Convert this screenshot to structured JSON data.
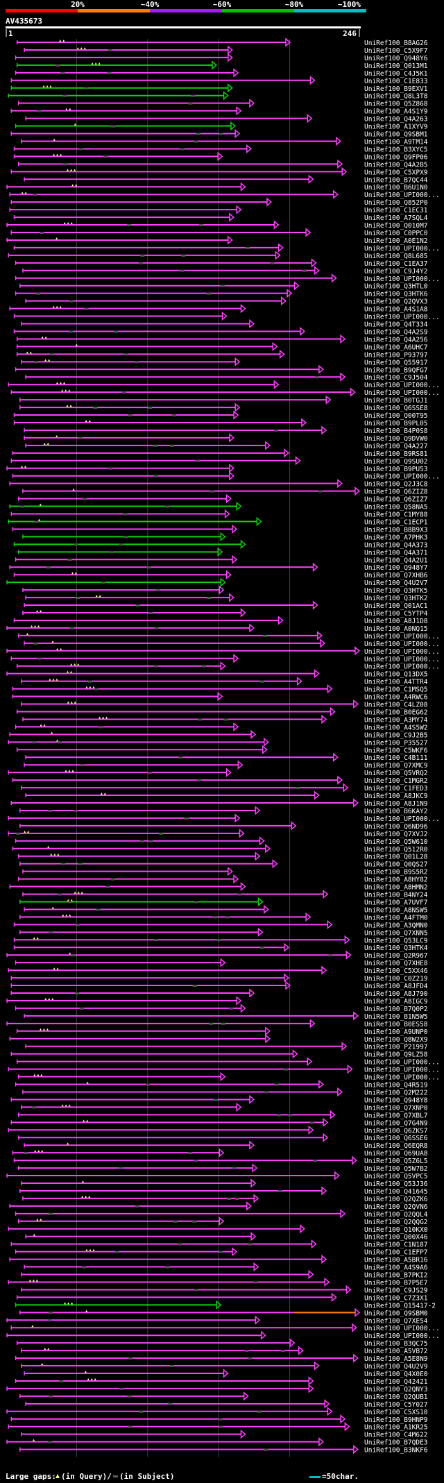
{
  "query": {
    "id": "AV435673",
    "start": 1,
    "end": 246
  },
  "identity_legend": {
    "labels": [
      "20%",
      "~40%",
      "~60%",
      "~80%",
      "~100%"
    ],
    "colors": [
      "#ff0000",
      "#ff8000",
      "#a020f0",
      "#00c000",
      "#00c0c0"
    ]
  },
  "colors": {
    "background": "#000000",
    "hit_magenta": "#ff40ff",
    "hit_green": "#10d010",
    "hit_orange": "#ff8000",
    "gap_yellow": "#ffff80",
    "gridline": "#404040",
    "text": "#ffffff"
  },
  "footer": {
    "large_gaps_label": "Large gaps:",
    "in_query_label": "(in Query)/",
    "in_subject_label": "(in Subject)",
    "scale_label": "=50char."
  },
  "chart_data": {
    "type": "alignment-overview",
    "query_length": 246,
    "hit_names": [
      "UniRef100_B8AG26",
      "UniRef100_C5X9F7",
      "UniRef100_Q948Y6",
      "UniRef100_Q013M1",
      "UniRef100_C4J5K1",
      "UniRef100_C1E833",
      "UniRef100_B9EXV1",
      "UniRef100_Q8L3T8",
      "UniRef100_Q5Z868",
      "UniRef100_A4S1Y9",
      "UniRef100_Q4A263",
      "UniRef100_A1XYV9",
      "UniRef100_Q9SBM1",
      "UniRef100_A9TM14",
      "UniRef100_B3XYC5",
      "UniRef100_Q9FP06",
      "UniRef100_Q4A2B5",
      "UniRef100_C5XPX9",
      "UniRef100_B7QC44",
      "UniRef100_B6U1N0",
      "UniRef100_UPI000...",
      "UniRef100_Q852P0",
      "UniRef100_C1EC31",
      "UniRef100_A7SQL4",
      "UniRef100_Q010M7",
      "UniRef100_C0PPC0",
      "UniRef100_A0E1N2",
      "UniRef100_UPI000...",
      "UniRef100_Q8L685",
      "UniRef100_C1EA37",
      "UniRef100_C9J4Y2",
      "UniRef100_UPI000...",
      "UniRef100_Q3HTL0",
      "UniRef100_Q3HTK6",
      "UniRef100_Q2QVX3",
      "UniRef100_A4S1A8",
      "UniRef100_UPI000...",
      "UniRef100_Q4T334",
      "UniRef100_Q4A2S9",
      "UniRef100_Q4A256",
      "UniRef100_A6UHC7",
      "UniRef100_P93797",
      "UniRef100_Q55917",
      "UniRef100_B9QFG7",
      "UniRef100_C9J504",
      "UniRef100_UPI000...",
      "UniRef100_UPI000...",
      "UniRef100_B0TGJ1",
      "UniRef100_Q6SSE8",
      "UniRef100_Q00T95",
      "UniRef100_B9PL05",
      "UniRef100_B4P0S8",
      "UniRef100_Q9DVW0",
      "UniRef100_Q4A227",
      "UniRef100_B9RS81",
      "UniRef100_Q9SU02",
      "UniRef100_B9PU53",
      "UniRef100_UPI000...",
      "UniRef100_Q2J3C8",
      "UniRef100_Q6ZIZ8",
      "UniRef100_Q6ZIZ7",
      "UniRef100_Q58NA5",
      "UniRef100_C1MY88",
      "UniRef100_C1ECP1",
      "UniRef100_B8B9X3",
      "UniRef100_A7PHK3",
      "UniRef100_Q4A373",
      "UniRef100_Q4A371",
      "UniRef100_Q4A2U1",
      "UniRef100_Q948Y7",
      "UniRef100_Q7XHB6",
      "UniRef100_Q4U2V7",
      "UniRef100_Q3HTK5",
      "UniRef100_Q3HTK2",
      "UniRef100_Q01AC1",
      "UniRef100_C5YTP4",
      "UniRef100_A8J1D8",
      "UniRef100_A0NQ15",
      "UniRef100_UPI000...",
      "UniRef100_UPI000...",
      "UniRef100_UPI000...",
      "UniRef100_UPI000...",
      "UniRef100_UPI000...",
      "UniRef100_Q13DX5",
      "UniRef100_A4TTR4",
      "UniRef100_C1MSQ5",
      "UniRef100_A4RWC6",
      "UniRef100_C4LZ08",
      "UniRef100_B0EG62",
      "UniRef100_A3MY74",
      "UniRef100_A4S5W2",
      "UniRef100_C9J2B5",
      "UniRef100_P35527",
      "UniRef100_C5WKF6",
      "UniRef100_C4B111",
      "UniRef100_Q7XMC9",
      "UniRef100_Q5VRQ2",
      "UniRef100_C1MGR2",
      "UniRef100_C1FED3",
      "UniRef100_A8JKC9",
      "UniRef100_A8J1N9",
      "UniRef100_B6KAY2",
      "UniRef100_UPI000...",
      "UniRef100_Q6ND96",
      "UniRef100_Q7XVJ2",
      "UniRef100_Q5W610",
      "UniRef100_Q512R0",
      "UniRef100_Q01L28",
      "UniRef100_Q0QS27",
      "UniRef100_B9S5R2",
      "UniRef100_A8HY82",
      "UniRef100_A8HMN2",
      "UniRef100_B4NY24",
      "UniRef100_A7UVF7",
      "UniRef100_A8NSW5",
      "UniRef100_A4FTM0",
      "UniRef100_A3QMN0",
      "UniRef100_Q7XNN5",
      "UniRef100_Q53LC9",
      "UniRef100_Q3HTK4",
      "UniRef100_Q2R967",
      "UniRef100_Q7XHE8",
      "UniRef100_C5XX46",
      "UniRef100_C0Z219",
      "UniRef100_A8JFD4",
      "UniRef100_A8J790",
      "UniRef100_A8IGC9",
      "UniRef100_B7Q0P2",
      "UniRef100_B1N5W5",
      "UniRef100_B0ES58",
      "UniRef100_A9UNP0",
      "UniRef100_Q8W2X9",
      "UniRef100_P21997",
      "UniRef100_Q9LZ58",
      "UniRef100_UPI000...",
      "UniRef100_UPI000...",
      "UniRef100_UPI000...",
      "UniRef100_Q4R519",
      "UniRef100_Q2M222",
      "UniRef100_Q948Y8",
      "UniRef100_Q7XNP0",
      "UniRef100_Q7XBL7",
      "UniRef100_Q7G4N9",
      "UniRef100_Q6ZKS7",
      "UniRef100_Q6SSE6",
      "UniRef100_Q6EQR8",
      "UniRef100_Q69UA8",
      "UniRef100_Q5Z6L5",
      "UniRef100_Q5W7B2",
      "UniRef100_Q5VPC5",
      "UniRef100_Q53J36",
      "UniRef100_Q41645",
      "UniRef100_Q2QZK6",
      "UniRef100_Q2QVN6",
      "UniRef100_Q2QQL4",
      "UniRef100_Q2QQG2",
      "UniRef100_Q10KX0",
      "UniRef100_Q00X46",
      "UniRef100_C1N187",
      "UniRef100_C1EFP7",
      "UniRef100_A5BR16",
      "UniRef100_A4S9A6",
      "UniRef100_B7PKI2",
      "UniRef100_B7P5E7",
      "UniRef100_C9JS29",
      "UniRef100_C7Z3X1",
      "UniRef100_Q15417-2",
      "UniRef100_Q9SBM0",
      "UniRef100_Q7XE54",
      "UniRef100_UPI000...",
      "UniRef100_UPI000...",
      "UniRef100_B3QC75",
      "UniRef100_A5VB72",
      "UniRef100_A5E8N9",
      "UniRef100_Q4U2V9",
      "UniRef100_Q4X0E0",
      "UniRef100_Q42421",
      "UniRef100_Q2QNY3",
      "UniRef100_Q2QUB1",
      "UniRef100_C5Y027",
      "UniRef100_C5XS10",
      "UniRef100_B9HNP9",
      "UniRef100_A1KR25",
      "UniRef100_C4M622",
      "UniRef100_B7QDE3",
      "UniRef100_B3NKF6"
    ]
  }
}
